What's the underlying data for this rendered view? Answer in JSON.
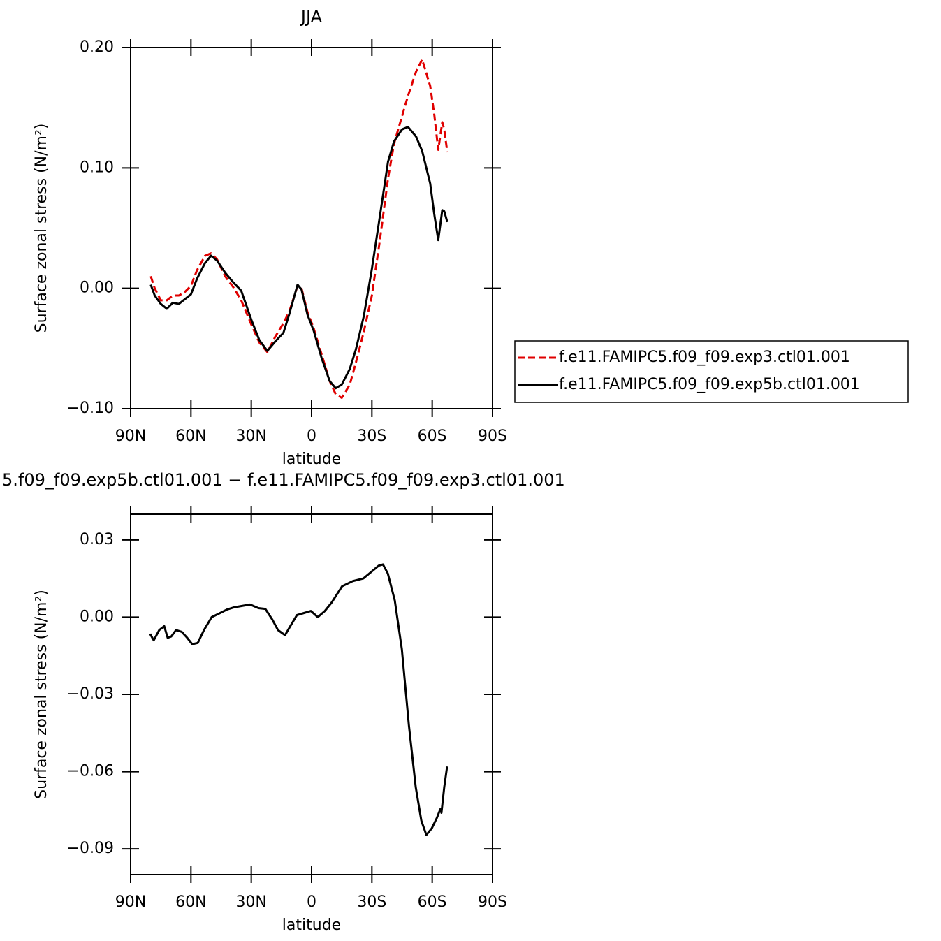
{
  "chart_data": [
    {
      "type": "line",
      "title": "JJA",
      "x_label": "latitude",
      "y_label": "Surface zonal stress (N/m²)",
      "xlim": [
        90,
        -90
      ],
      "xticks": [
        {
          "value": 90,
          "label": "90N"
        },
        {
          "value": 60,
          "label": "60N"
        },
        {
          "value": 30,
          "label": "30N"
        },
        0,
        {
          "value": -30,
          "label": "30S"
        },
        {
          "value": -60,
          "label": "60S"
        },
        {
          "value": -90,
          "label": "90S"
        }
      ],
      "ylim": [
        -0.1,
        0.2
      ],
      "yticks": [
        {
          "value": 0.2,
          "label": "0.20"
        },
        {
          "value": 0.1,
          "label": "0.10"
        },
        {
          "value": 0,
          "label": "0.00"
        },
        {
          "value": -0.1,
          "label": "−0.10"
        }
      ],
      "legend": "right",
      "x": [
        80,
        78,
        75,
        72,
        69,
        66,
        63,
        60,
        57,
        53,
        50,
        47,
        43,
        39,
        35,
        30,
        26,
        22,
        18,
        14,
        11,
        7,
        5,
        2,
        -1,
        -5,
        -9,
        -12,
        -15,
        -19,
        -22,
        -26,
        -30,
        -34,
        -38,
        -41,
        -45,
        -48,
        -52,
        -55,
        -59,
        -61,
        -63,
        -65,
        -66,
        -67.5
      ],
      "series": [
        {
          "name": "f.e11.FAMIPC5.f09_f09.exp3.ctl01.001",
          "color": "#e00000",
          "line_style": "dashed",
          "values": [
            0.01,
            0.0,
            -0.01,
            -0.01,
            -0.006,
            -0.006,
            -0.003,
            0.002,
            0.015,
            0.027,
            0.029,
            0.024,
            0.01,
            0.001,
            -0.01,
            -0.03,
            -0.045,
            -0.053,
            -0.04,
            -0.029,
            -0.019,
            0.002,
            0.0,
            -0.02,
            -0.033,
            -0.055,
            -0.077,
            -0.088,
            -0.091,
            -0.08,
            -0.062,
            -0.036,
            -0.006,
            0.04,
            0.091,
            0.12,
            0.143,
            0.16,
            0.18,
            0.19,
            0.168,
            0.145,
            0.115,
            0.138,
            0.132,
            0.113
          ]
        },
        {
          "name": "f.e11.FAMIPC5.f09_f09.exp5b.ctl01.001",
          "color": "#000000",
          "line_style": "solid",
          "values": [
            0.003,
            -0.006,
            -0.013,
            -0.017,
            -0.012,
            -0.013,
            -0.009,
            -0.005,
            0.008,
            0.021,
            0.027,
            0.023,
            0.013,
            0.005,
            -0.002,
            -0.026,
            -0.043,
            -0.052,
            -0.044,
            -0.037,
            -0.021,
            0.003,
            -0.001,
            -0.022,
            -0.035,
            -0.058,
            -0.077,
            -0.083,
            -0.08,
            -0.067,
            -0.051,
            -0.023,
            0.016,
            0.06,
            0.105,
            0.122,
            0.132,
            0.134,
            0.126,
            0.114,
            0.087,
            0.062,
            0.04,
            0.065,
            0.064,
            0.055
          ]
        }
      ]
    },
    {
      "type": "line",
      "title": "5.f09_f09.exp5b.ctl01.001 − f.e11.FAMIPC5.f09_f09.exp3.ctl01.001",
      "x_label": "latitude",
      "y_label": "Surface zonal stress (N/m²)",
      "xlim": [
        90,
        -90
      ],
      "xticks": [
        {
          "value": 90,
          "label": "90N"
        },
        {
          "value": 60,
          "label": "60N"
        },
        {
          "value": 30,
          "label": "30N"
        },
        0,
        {
          "value": -30,
          "label": "30S"
        },
        {
          "value": -60,
          "label": "60S"
        },
        {
          "value": -90,
          "label": "90S"
        }
      ],
      "ylim": [
        -0.1,
        0.04
      ],
      "yticks": [
        {
          "value": 0.03,
          "label": "0.03"
        },
        {
          "value": 0,
          "label": "0.00"
        },
        {
          "value": -0.03,
          "label": "−0.03"
        },
        {
          "value": -0.06,
          "label": "−0.06"
        },
        {
          "value": -0.09,
          "label": "−0.09"
        }
      ],
      "x": [
        80.3,
        78.5,
        75.8,
        73.3,
        71.6,
        69.8,
        67.4,
        64.6,
        61.9,
        59.4,
        56.6,
        53.5,
        49.7,
        45.5,
        42,
        38.6,
        35.1,
        30.6,
        26.4,
        23,
        19.5,
        16.7,
        13.2,
        10.8,
        7.3,
        3.8,
        0.3,
        -3.1,
        -6.6,
        -10,
        -15.2,
        -20.5,
        -25.7,
        -30.3,
        -33.4,
        -35.5,
        -37.9,
        -41.4,
        -44.9,
        -48.4,
        -51.8,
        -54.6,
        -57.1,
        -59.8,
        -62.3,
        -64,
        -64.6,
        -66,
        -67.4
      ],
      "series": [
        {
          "color": "#000000",
          "line_style": "solid",
          "values": [
            -0.0065,
            -0.009,
            -0.005,
            -0.0035,
            -0.008,
            -0.0075,
            -0.005,
            -0.0057,
            -0.008,
            -0.0105,
            -0.01,
            -0.005,
            0.0,
            0.0016,
            0.003,
            0.0038,
            0.0043,
            0.0049,
            0.0035,
            0.0032,
            -0.001,
            -0.005,
            -0.007,
            -0.0038,
            0.0008,
            0.0016,
            0.0024,
            0.0,
            0.0024,
            0.0057,
            0.012,
            0.014,
            0.015,
            0.018,
            0.02,
            0.0205,
            0.017,
            0.0065,
            -0.0124,
            -0.042,
            -0.066,
            -0.079,
            -0.0846,
            -0.082,
            -0.078,
            -0.0746,
            -0.076,
            -0.066,
            -0.058
          ]
        }
      ]
    }
  ]
}
